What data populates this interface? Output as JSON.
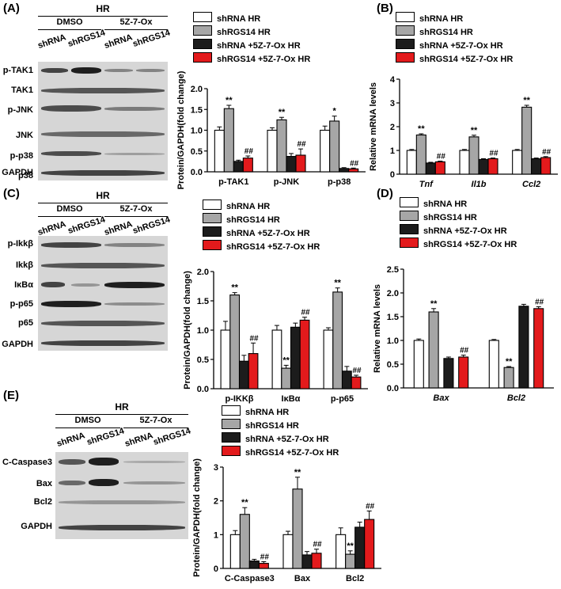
{
  "colors": {
    "shRNA_HR": "#ffffff",
    "shRGS14_HR": "#a6a6a6",
    "shRNA_5Z_HR": "#1c1c1c",
    "shRGS14_5Z_HR": "#e31a1c"
  },
  "panels": {
    "A": {
      "label": "(A)",
      "blot": {
        "title": "HR",
        "groups": [
          "DMSO",
          "5Z-7-Ox"
        ],
        "lanes": [
          "shRNA",
          "shRGS14",
          "shRNA",
          "shRGS14"
        ],
        "rows": [
          "p-TAK1",
          "TAK1",
          "p-JNK",
          "JNK",
          "p-p38",
          "p38",
          "GAPDH"
        ]
      }
    },
    "B": {
      "label": "(B)"
    },
    "C": {
      "label": "(C)",
      "blot": {
        "title": "HR",
        "groups": [
          "DMSO",
          "5Z-7-Ox"
        ],
        "lanes": [
          "shRNA",
          "shRGS14",
          "shRNA",
          "shRGS14"
        ],
        "rows": [
          "p-Ikkβ",
          "Ikkβ",
          "IκBα",
          "p-p65",
          "p65",
          "GAPDH"
        ]
      }
    },
    "D": {
      "label": "(D)"
    },
    "E": {
      "label": "(E)",
      "blot": {
        "title": "HR",
        "groups": [
          "DMSO",
          "5Z-7-Ox"
        ],
        "lanes": [
          "shRNA",
          "shRGS14",
          "shRNA",
          "shRGS14"
        ],
        "rows": [
          "C-Caspase3",
          "Bax",
          "Bcl2",
          "GAPDH"
        ]
      }
    }
  },
  "legend": [
    "shRNA HR",
    "shRGS14 HR",
    "shRNA +5Z-7-Ox HR",
    "shRGS14 +5Z-7-Ox HR"
  ],
  "chart_data": [
    {
      "id": "A",
      "type": "bar",
      "ylabel": "Protein/GAPDH(fold change)",
      "ylim": [
        0,
        2.0
      ],
      "yticks": [
        "0.0",
        "0.5",
        "1.0",
        "1.5",
        "2.0"
      ],
      "categories": [
        "p-TAK1",
        "p-JNK",
        "p-p38"
      ],
      "italic_categories": false,
      "series": [
        {
          "name": "shRNA HR",
          "values": [
            1.0,
            1.0,
            1.0
          ],
          "errors": [
            0.08,
            0.06,
            0.1
          ]
        },
        {
          "name": "shRGS14 HR",
          "values": [
            1.52,
            1.25,
            1.22
          ],
          "errors": [
            0.08,
            0.06,
            0.12
          ]
        },
        {
          "name": "shRNA +5Z-7-Ox HR",
          "values": [
            0.25,
            0.37,
            0.08
          ],
          "errors": [
            0.03,
            0.07,
            0.02
          ]
        },
        {
          "name": "shRGS14 +5Z-7-Ox HR",
          "values": [
            0.33,
            0.4,
            0.07
          ],
          "errors": [
            0.05,
            0.15,
            0.02
          ]
        }
      ],
      "annotations": [
        [
          "**",
          "**",
          "*"
        ],
        [
          "##",
          "##",
          "##"
        ]
      ]
    },
    {
      "id": "B",
      "type": "bar",
      "ylabel": "Relative mRNA levels",
      "ylim": [
        0,
        4
      ],
      "yticks": [
        "0",
        "1",
        "2",
        "3",
        "4"
      ],
      "categories": [
        "Tnf",
        "Il1b",
        "Ccl2"
      ],
      "italic_categories": true,
      "series": [
        {
          "name": "shRNA HR",
          "values": [
            1.0,
            1.0,
            1.0
          ],
          "errors": [
            0.04,
            0.04,
            0.04
          ]
        },
        {
          "name": "shRGS14 HR",
          "values": [
            1.65,
            1.57,
            2.82
          ],
          "errors": [
            0.05,
            0.07,
            0.08
          ]
        },
        {
          "name": "shRNA +5Z-7-Ox HR",
          "values": [
            0.47,
            0.62,
            0.65
          ],
          "errors": [
            0.03,
            0.03,
            0.03
          ]
        },
        {
          "name": "shRGS14 +5Z-7-Ox HR",
          "values": [
            0.52,
            0.65,
            0.7
          ],
          "errors": [
            0.03,
            0.03,
            0.04
          ]
        }
      ],
      "annotations": [
        [
          "**",
          "**",
          "**"
        ],
        [
          "##",
          "##",
          "##"
        ]
      ]
    },
    {
      "id": "C",
      "type": "bar",
      "ylabel": "Protein/GAPDH(fold change)",
      "ylim": [
        0,
        2.0
      ],
      "yticks": [
        "0.0",
        "0.5",
        "1.0",
        "1.5",
        "2.0"
      ],
      "categories": [
        "p-IKKβ",
        "IκBα",
        "p-p65"
      ],
      "italic_categories": false,
      "series": [
        {
          "name": "shRNA HR",
          "values": [
            1.0,
            1.0,
            1.0
          ],
          "errors": [
            0.15,
            0.08,
            0.04
          ]
        },
        {
          "name": "shRGS14 HR",
          "values": [
            1.6,
            0.35,
            1.65
          ],
          "errors": [
            0.04,
            0.05,
            0.07
          ]
        },
        {
          "name": "shRNA +5Z-7-Ox HR",
          "values": [
            0.47,
            1.05,
            0.3
          ],
          "errors": [
            0.1,
            0.07,
            0.08
          ]
        },
        {
          "name": "shRGS14 +5Z-7-Ox HR",
          "values": [
            0.6,
            1.17,
            0.2
          ],
          "errors": [
            0.18,
            0.05,
            0.03
          ]
        }
      ],
      "annotations": [
        [
          "**",
          "**",
          "**"
        ],
        [
          "##",
          "##",
          "##"
        ]
      ]
    },
    {
      "id": "D",
      "type": "bar",
      "ylabel": "Relative mRNA levels",
      "ylim": [
        0,
        2.5
      ],
      "yticks": [
        "0.0",
        "0.5",
        "1.0",
        "1.5",
        "2.0",
        "2.5"
      ],
      "categories": [
        "Bax",
        "Bcl2"
      ],
      "italic_categories": true,
      "series": [
        {
          "name": "shRNA HR",
          "values": [
            1.0,
            1.0
          ],
          "errors": [
            0.03,
            0.02
          ]
        },
        {
          "name": "shRGS14 HR",
          "values": [
            1.6,
            0.43
          ],
          "errors": [
            0.07,
            0.02
          ]
        },
        {
          "name": "shRNA +5Z-7-Ox HR",
          "values": [
            0.62,
            1.72
          ],
          "errors": [
            0.03,
            0.04
          ]
        },
        {
          "name": "shRGS14 +5Z-7-Ox HR",
          "values": [
            0.65,
            1.67
          ],
          "errors": [
            0.04,
            0.04
          ]
        }
      ],
      "annotations": [
        [
          "**",
          "**"
        ],
        [
          "##",
          "##"
        ]
      ]
    },
    {
      "id": "E",
      "type": "bar",
      "ylabel": "Protein/GAPDH(fold change)",
      "ylim": [
        0,
        3
      ],
      "yticks": [
        "0",
        "1",
        "2",
        "3"
      ],
      "categories": [
        "C-Caspase3",
        "Bax",
        "Bcl2"
      ],
      "italic_categories": false,
      "series": [
        {
          "name": "shRNA HR",
          "values": [
            1.0,
            1.0,
            1.0
          ],
          "errors": [
            0.12,
            0.1,
            0.2
          ]
        },
        {
          "name": "shRGS14 HR",
          "values": [
            1.6,
            2.35,
            0.42
          ],
          "errors": [
            0.2,
            0.35,
            0.1
          ]
        },
        {
          "name": "shRNA +5Z-7-Ox HR",
          "values": [
            0.22,
            0.4,
            1.22
          ],
          "errors": [
            0.05,
            0.1,
            0.15
          ]
        },
        {
          "name": "shRGS14 +5Z-7-Ox HR",
          "values": [
            0.15,
            0.45,
            1.45
          ],
          "errors": [
            0.05,
            0.12,
            0.25
          ]
        }
      ],
      "annotations": [
        [
          "**",
          "**",
          "**"
        ],
        [
          "##",
          "##",
          "##"
        ]
      ]
    }
  ]
}
